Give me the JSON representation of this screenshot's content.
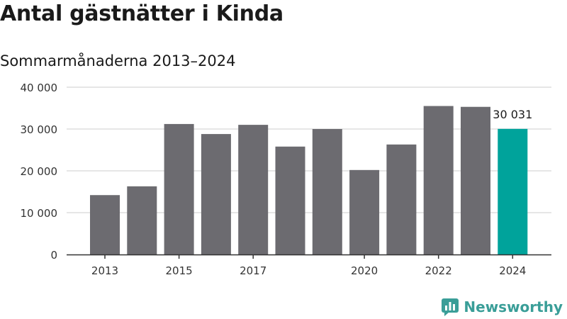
{
  "title": "Antal gästnätter i Kinda",
  "subtitle": "Sommarmånaderna 2013–2024",
  "brand": "Newsworthy",
  "colors": {
    "bar": "#6c6b70",
    "highlight": "#00a39b",
    "grid": "#dddddd",
    "axis": "#333333",
    "brand": "#3a9e98"
  },
  "chart_data": {
    "type": "bar",
    "categories": [
      "2013",
      "2014",
      "2015",
      "2016",
      "2017",
      "2018",
      "2019",
      "2020",
      "2021",
      "2022",
      "2023",
      "2024"
    ],
    "values": [
      14200,
      16300,
      31200,
      28800,
      31000,
      25800,
      30000,
      20200,
      26300,
      35500,
      35300,
      30031
    ],
    "highlight_index": 11,
    "data_label": "30 031",
    "x_tick_labels": [
      "2013",
      "",
      "2015",
      "",
      "2017",
      "",
      "",
      "2020",
      "",
      "2022",
      "",
      "2024"
    ],
    "y_ticks": [
      0,
      10000,
      20000,
      30000,
      40000
    ],
    "y_tick_labels": [
      "0",
      "10 000",
      "20 000",
      "30 000",
      "40 000"
    ],
    "ylim": [
      0,
      40000
    ],
    "xlabel": "",
    "ylabel": "",
    "grid": true,
    "legend": false
  }
}
